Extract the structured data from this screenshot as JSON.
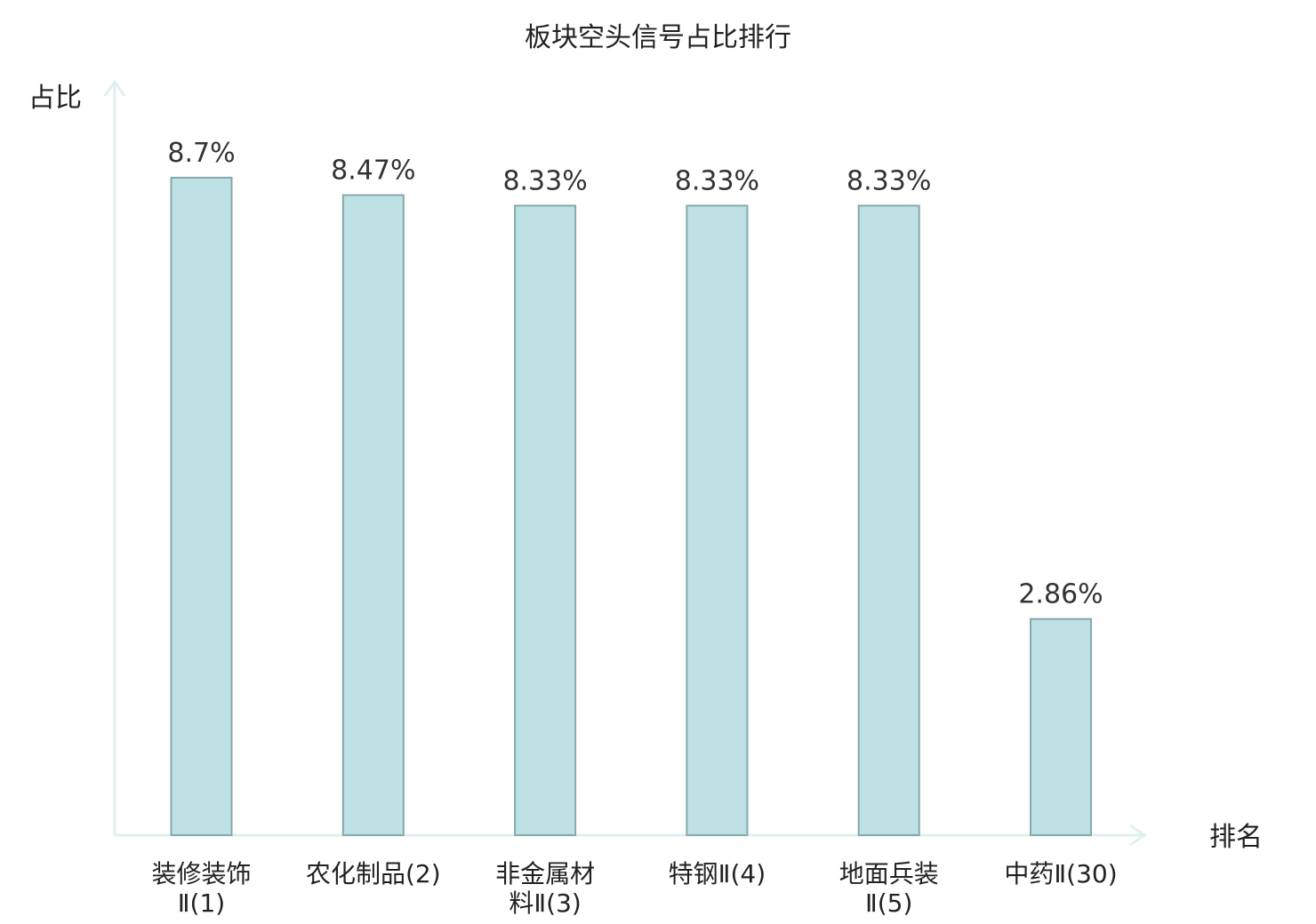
{
  "chart_data": {
    "type": "bar",
    "title": "板块空头信号占比排行",
    "ylabel": "占比",
    "xlabel": "排名",
    "categories": [
      [
        "装修装饰",
        "Ⅱ(1)"
      ],
      [
        "农化制品(2)"
      ],
      [
        "非金属材",
        "料Ⅱ(3)"
      ],
      [
        "特钢Ⅱ(4)"
      ],
      [
        "地面兵装",
        "Ⅱ(5)"
      ],
      [
        "中药Ⅱ(30)"
      ]
    ],
    "values": [
      8.7,
      8.47,
      8.33,
      8.33,
      8.33,
      2.86
    ],
    "value_labels": [
      "8.7%",
      "8.47%",
      "8.33%",
      "8.33%",
      "8.33%",
      "2.86%"
    ],
    "highlight_index": 5,
    "ylim": [
      0,
      10
    ],
    "grid": false,
    "legend": "none",
    "colors": {
      "bar_fill": "#bde1e4",
      "bar_stroke": "#86a9ab",
      "axis": "#dff1ef",
      "text": "#222222",
      "highlight_text": "#e8000b"
    }
  }
}
